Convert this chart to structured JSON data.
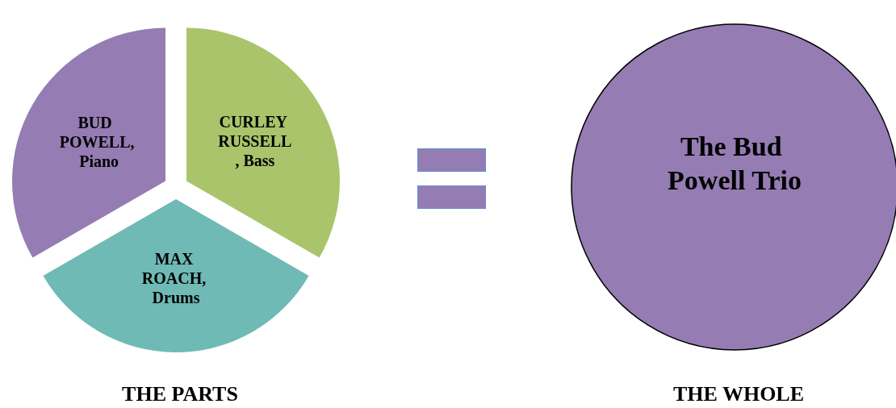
{
  "chart_data": [
    {
      "type": "pie",
      "title": "THE PARTS",
      "categories": [
        "BUD POWELL, Piano",
        "CURLEY RUSSELL, Bass",
        "MAX ROACH, Drums"
      ],
      "values": [
        33.33,
        33.33,
        33.34
      ],
      "colors": [
        "#957cb3",
        "#a9c46b",
        "#6fbab5"
      ]
    },
    {
      "type": "pie",
      "title": "THE WHOLE",
      "categories": [
        "The Bud Powell Trio"
      ],
      "values": [
        100
      ],
      "colors": [
        "#957cb3"
      ]
    }
  ]
}
